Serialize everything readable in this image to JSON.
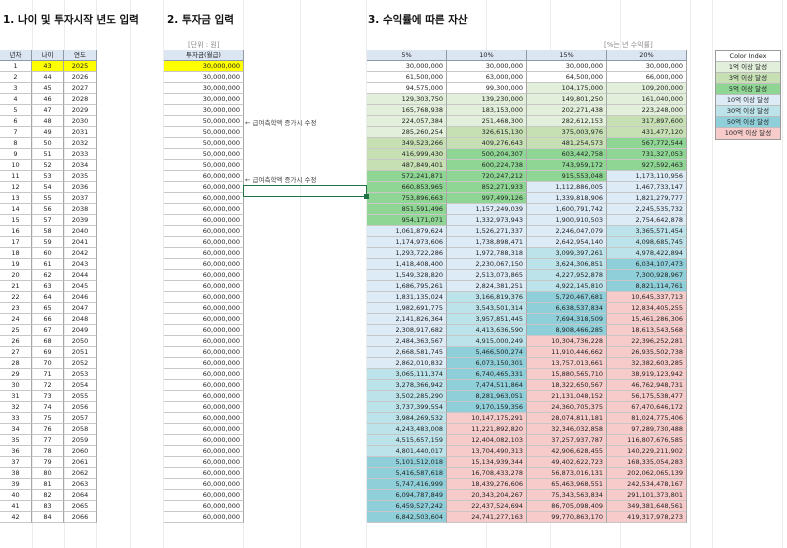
{
  "headings": {
    "h1": "1. 나이 및 투자시작 년도 입력",
    "h2": "2. 투자금 입력",
    "h3": "3. 수익률에 따른 자산"
  },
  "units": {
    "invest": "[단위 : 원]",
    "rate": "[%는 년 수익률]"
  },
  "left_headers": [
    "년차",
    "나이",
    "연도"
  ],
  "invest_header": "투자금(월급)",
  "rate_headers": [
    "5%",
    "10%",
    "15%",
    "20%"
  ],
  "rows": [
    {
      "year": "1",
      "age": "43",
      "yr": "2025",
      "inv": "30,000,000",
      "v": [
        "30,000,000",
        "30,000,000",
        "30,000,000",
        "30,000,000"
      ]
    },
    {
      "year": "2",
      "age": "44",
      "yr": "2026",
      "inv": "30,000,000",
      "v": [
        "61,500,000",
        "63,000,000",
        "64,500,000",
        "66,000,000"
      ]
    },
    {
      "year": "3",
      "age": "45",
      "yr": "2027",
      "inv": "30,000,000",
      "v": [
        "94,575,000",
        "99,300,000",
        "104,175,000",
        "109,200,000"
      ]
    },
    {
      "year": "4",
      "age": "46",
      "yr": "2028",
      "inv": "30,000,000",
      "v": [
        "129,303,750",
        "139,230,000",
        "149,801,250",
        "161,040,000"
      ]
    },
    {
      "year": "5",
      "age": "47",
      "yr": "2029",
      "inv": "30,000,000",
      "v": [
        "165,768,938",
        "183,153,000",
        "202,271,438",
        "223,248,000"
      ]
    },
    {
      "year": "6",
      "age": "48",
      "yr": "2030",
      "inv": "50,000,000",
      "v": [
        "224,057,384",
        "251,468,300",
        "282,612,153",
        "317,897,600"
      ]
    },
    {
      "year": "7",
      "age": "49",
      "yr": "2031",
      "inv": "50,000,000",
      "v": [
        "285,260,254",
        "326,615,130",
        "375,003,976",
        "431,477,120"
      ]
    },
    {
      "year": "8",
      "age": "50",
      "yr": "2032",
      "inv": "50,000,000",
      "v": [
        "349,523,266",
        "409,276,643",
        "481,254,573",
        "567,772,544"
      ]
    },
    {
      "year": "9",
      "age": "51",
      "yr": "2033",
      "inv": "50,000,000",
      "v": [
        "416,999,430",
        "500,204,307",
        "603,442,758",
        "731,327,053"
      ]
    },
    {
      "year": "10",
      "age": "52",
      "yr": "2034",
      "inv": "50,000,000",
      "v": [
        "487,849,401",
        "600,224,738",
        "743,959,172",
        "927,592,463"
      ]
    },
    {
      "year": "11",
      "age": "53",
      "yr": "2035",
      "inv": "60,000,000",
      "v": [
        "572,241,871",
        "720,247,212",
        "915,553,048",
        "1,173,110,956"
      ]
    },
    {
      "year": "12",
      "age": "54",
      "yr": "2036",
      "inv": "60,000,000",
      "v": [
        "660,853,965",
        "852,271,933",
        "1,112,886,005",
        "1,467,733,147"
      ]
    },
    {
      "year": "13",
      "age": "55",
      "yr": "2037",
      "inv": "60,000,000",
      "v": [
        "753,896,663",
        "997,499,126",
        "1,339,818,906",
        "1,821,279,777"
      ]
    },
    {
      "year": "14",
      "age": "56",
      "yr": "2038",
      "inv": "60,000,000",
      "v": [
        "851,591,496",
        "1,157,249,039",
        "1,600,791,742",
        "2,245,535,732"
      ]
    },
    {
      "year": "15",
      "age": "57",
      "yr": "2039",
      "inv": "60,000,000",
      "v": [
        "954,171,071",
        "1,332,973,943",
        "1,900,910,503",
        "2,754,642,878"
      ]
    },
    {
      "year": "16",
      "age": "58",
      "yr": "2040",
      "inv": "60,000,000",
      "v": [
        "1,061,879,624",
        "1,526,271,337",
        "2,246,047,079",
        "3,365,571,454"
      ]
    },
    {
      "year": "17",
      "age": "59",
      "yr": "2041",
      "inv": "60,000,000",
      "v": [
        "1,174,973,606",
        "1,738,898,471",
        "2,642,954,140",
        "4,098,685,745"
      ]
    },
    {
      "year": "18",
      "age": "60",
      "yr": "2042",
      "inv": "60,000,000",
      "v": [
        "1,293,722,286",
        "1,972,788,318",
        "3,099,397,261",
        "4,978,422,894"
      ]
    },
    {
      "year": "19",
      "age": "61",
      "yr": "2043",
      "inv": "60,000,000",
      "v": [
        "1,418,408,400",
        "2,230,067,150",
        "3,624,306,851",
        "6,034,107,473"
      ]
    },
    {
      "year": "20",
      "age": "62",
      "yr": "2044",
      "inv": "60,000,000",
      "v": [
        "1,549,328,820",
        "2,513,073,865",
        "4,227,952,878",
        "7,300,928,967"
      ]
    },
    {
      "year": "21",
      "age": "63",
      "yr": "2045",
      "inv": "60,000,000",
      "v": [
        "1,686,795,261",
        "2,824,381,251",
        "4,922,145,810",
        "8,821,114,761"
      ]
    },
    {
      "year": "22",
      "age": "64",
      "yr": "2046",
      "inv": "60,000,000",
      "v": [
        "1,831,135,024",
        "3,166,819,376",
        "5,720,467,681",
        "10,645,337,713"
      ]
    },
    {
      "year": "23",
      "age": "65",
      "yr": "2047",
      "inv": "60,000,000",
      "v": [
        "1,982,691,775",
        "3,543,501,314",
        "6,638,537,834",
        "12,834,405,255"
      ]
    },
    {
      "year": "24",
      "age": "66",
      "yr": "2048",
      "inv": "60,000,000",
      "v": [
        "2,141,826,364",
        "3,957,851,445",
        "7,694,318,509",
        "15,461,286,306"
      ]
    },
    {
      "year": "25",
      "age": "67",
      "yr": "2049",
      "inv": "60,000,000",
      "v": [
        "2,308,917,682",
        "4,413,636,590",
        "8,908,466,285",
        "18,613,543,568"
      ]
    },
    {
      "year": "26",
      "age": "68",
      "yr": "2050",
      "inv": "60,000,000",
      "v": [
        "2,484,363,567",
        "4,915,000,249",
        "10,304,736,228",
        "22,396,252,281"
      ]
    },
    {
      "year": "27",
      "age": "69",
      "yr": "2051",
      "inv": "60,000,000",
      "v": [
        "2,668,581,745",
        "5,466,500,274",
        "11,910,446,662",
        "26,935,502,738"
      ]
    },
    {
      "year": "28",
      "age": "70",
      "yr": "2052",
      "inv": "60,000,000",
      "v": [
        "2,862,010,832",
        "6,073,150,301",
        "13,757,013,661",
        "32,382,603,285"
      ]
    },
    {
      "year": "29",
      "age": "71",
      "yr": "2053",
      "inv": "60,000,000",
      "v": [
        "3,065,111,374",
        "6,740,465,331",
        "15,880,565,710",
        "38,919,123,942"
      ]
    },
    {
      "year": "30",
      "age": "72",
      "yr": "2054",
      "inv": "60,000,000",
      "v": [
        "3,278,366,942",
        "7,474,511,864",
        "18,322,650,567",
        "46,762,948,731"
      ]
    },
    {
      "year": "31",
      "age": "73",
      "yr": "2055",
      "inv": "60,000,000",
      "v": [
        "3,502,285,290",
        "8,281,963,051",
        "21,131,048,152",
        "56,175,538,477"
      ]
    },
    {
      "year": "32",
      "age": "74",
      "yr": "2056",
      "inv": "60,000,000",
      "v": [
        "3,737,399,554",
        "9,170,159,356",
        "24,360,705,375",
        "67,470,646,172"
      ]
    },
    {
      "year": "33",
      "age": "75",
      "yr": "2057",
      "inv": "60,000,000",
      "v": [
        "3,984,269,532",
        "10,147,175,291",
        "28,074,811,181",
        "81,024,775,406"
      ]
    },
    {
      "year": "34",
      "age": "76",
      "yr": "2058",
      "inv": "60,000,000",
      "v": [
        "4,243,483,008",
        "11,221,892,820",
        "32,346,032,858",
        "97,289,730,488"
      ]
    },
    {
      "year": "35",
      "age": "77",
      "yr": "2059",
      "inv": "60,000,000",
      "v": [
        "4,515,657,159",
        "12,404,082,103",
        "37,257,937,787",
        "116,807,676,585"
      ]
    },
    {
      "year": "36",
      "age": "78",
      "yr": "2060",
      "inv": "60,000,000",
      "v": [
        "4,801,440,017",
        "13,704,490,313",
        "42,906,628,455",
        "140,229,211,902"
      ]
    },
    {
      "year": "37",
      "age": "79",
      "yr": "2061",
      "inv": "60,000,000",
      "v": [
        "5,101,512,018",
        "15,134,939,344",
        "49,402,622,723",
        "168,335,054,283"
      ]
    },
    {
      "year": "38",
      "age": "80",
      "yr": "2062",
      "inv": "60,000,000",
      "v": [
        "5,416,587,618",
        "16,708,433,278",
        "56,873,016,131",
        "202,062,065,139"
      ]
    },
    {
      "year": "39",
      "age": "81",
      "yr": "2063",
      "inv": "60,000,000",
      "v": [
        "5,747,416,999",
        "18,439,276,606",
        "65,463,968,551",
        "242,534,478,167"
      ]
    },
    {
      "year": "40",
      "age": "82",
      "yr": "2064",
      "inv": "60,000,000",
      "v": [
        "6,094,787,849",
        "20,343,204,267",
        "75,343,563,834",
        "291,101,373,801"
      ]
    },
    {
      "year": "41",
      "age": "83",
      "yr": "2065",
      "inv": "60,000,000",
      "v": [
        "6,459,527,242",
        "22,437,524,694",
        "86,705,098,409",
        "349,381,648,561"
      ]
    },
    {
      "year": "42",
      "age": "84",
      "yr": "2066",
      "inv": "60,000,000",
      "v": [
        "6,842,503,604",
        "24,741,277,163",
        "99,770,863,170",
        "419,317,978,273"
      ]
    }
  ],
  "notes": {
    "first": "← 급여측학액 증가시 수정",
    "second": "← 급여측학액 증가시 수정"
  },
  "legend": {
    "title": "Color Index",
    "items": [
      {
        "label": "1억 이상 달성",
        "color": "#e2efda"
      },
      {
        "label": "3억 이상 달성",
        "color": "#c6e0b4"
      },
      {
        "label": "5억 이상 달성",
        "color": "#8fd694"
      },
      {
        "label": "10억 이상 달성",
        "color": "#ddebf7"
      },
      {
        "label": "30억 이상 달성",
        "color": "#bde3ea"
      },
      {
        "label": "50억 이상 달성",
        "color": "#8fcfd9"
      },
      {
        "label": "100억 이상 달성",
        "color": "#f8cbcb"
      }
    ]
  },
  "colors": {
    "highlight": "#ffff00",
    "header_bg": "#dbe6f2",
    "selection": "#217346"
  }
}
